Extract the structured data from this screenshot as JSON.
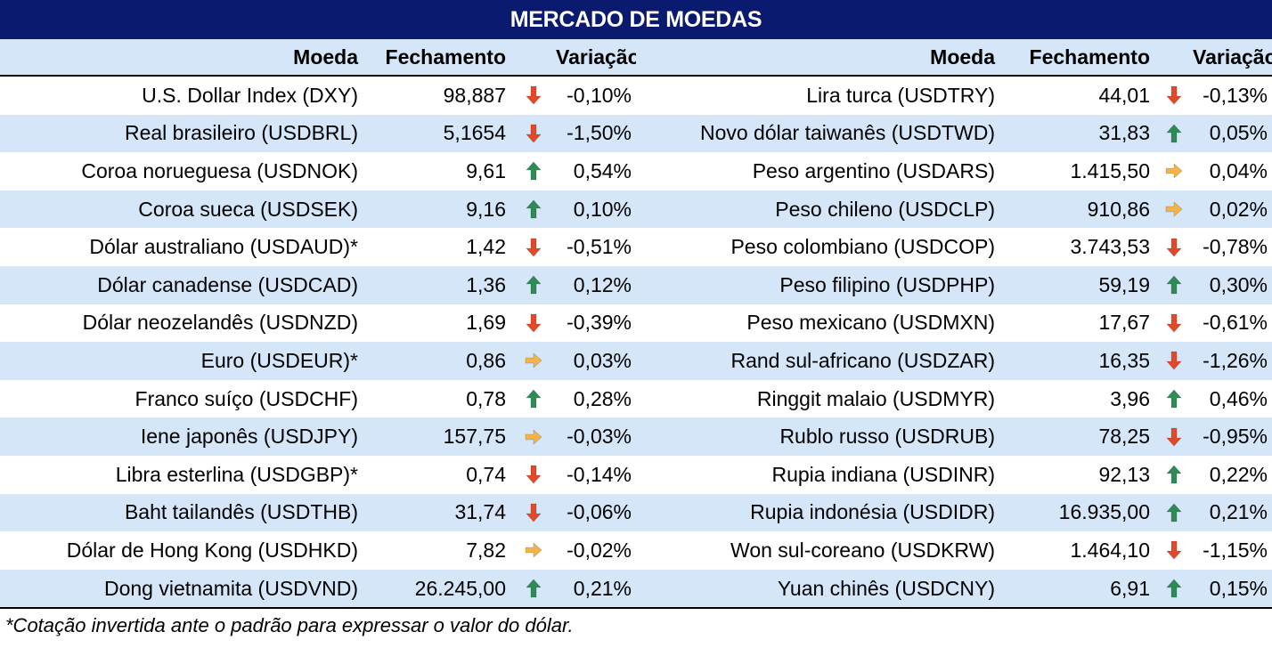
{
  "title": "MERCADO DE MOEDAS",
  "headers": {
    "currency": "Moeda",
    "close": "Fechamento",
    "change": "Variação"
  },
  "colors": {
    "header_bg": "#0a1a6e",
    "band": "#d4e6f8",
    "down": "#e2492a",
    "up": "#2e8b57",
    "flat": "#f2b44a"
  },
  "left_rows": [
    {
      "name": "U.S. Dollar Index (DXY)",
      "close": "98,887",
      "trend": "down",
      "change": "-0,10%"
    },
    {
      "name": "Real brasileiro (USDBRL)",
      "close": "5,1654",
      "trend": "down",
      "change": "-1,50%"
    },
    {
      "name": "Coroa norueguesa (USDNOK)",
      "close": "9,61",
      "trend": "up",
      "change": "0,54%"
    },
    {
      "name": "Coroa sueca (USDSEK)",
      "close": "9,16",
      "trend": "up",
      "change": "0,10%"
    },
    {
      "name": "Dólar australiano (USDAUD)*",
      "close": "1,42",
      "trend": "down",
      "change": "-0,51%"
    },
    {
      "name": "Dólar canadense (USDCAD)",
      "close": "1,36",
      "trend": "up",
      "change": "0,12%"
    },
    {
      "name": "Dólar neozelandês (USDNZD)",
      "close": "1,69",
      "trend": "down",
      "change": "-0,39%"
    },
    {
      "name": "Euro (USDEUR)*",
      "close": "0,86",
      "trend": "flat",
      "change": "0,03%"
    },
    {
      "name": "Franco suíço (USDCHF)",
      "close": "0,78",
      "trend": "up",
      "change": "0,28%"
    },
    {
      "name": "Iene japonês (USDJPY)",
      "close": "157,75",
      "trend": "flat",
      "change": "-0,03%"
    },
    {
      "name": "Libra esterlina (USDGBP)*",
      "close": "0,74",
      "trend": "down",
      "change": "-0,14%"
    },
    {
      "name": "Baht tailandês (USDTHB)",
      "close": "31,74",
      "trend": "down",
      "change": "-0,06%"
    },
    {
      "name": "Dólar de Hong Kong (USDHKD)",
      "close": "7,82",
      "trend": "flat",
      "change": "-0,02%"
    },
    {
      "name": "Dong vietnamita (USDVND)",
      "close": "26.245,00",
      "trend": "up",
      "change": "0,21%"
    }
  ],
  "right_rows": [
    {
      "name": "Lira turca (USDTRY)",
      "close": "44,01",
      "trend": "down",
      "change": "-0,13%"
    },
    {
      "name": "Novo dólar taiwanês (USDTWD)",
      "close": "31,83",
      "trend": "up",
      "change": "0,05%"
    },
    {
      "name": "Peso argentino (USDARS)",
      "close": "1.415,50",
      "trend": "flat",
      "change": "0,04%"
    },
    {
      "name": "Peso chileno (USDCLP)",
      "close": "910,86",
      "trend": "flat",
      "change": "0,02%"
    },
    {
      "name": "Peso colombiano (USDCOP)",
      "close": "3.743,53",
      "trend": "down",
      "change": "-0,78%"
    },
    {
      "name": "Peso filipino (USDPHP)",
      "close": "59,19",
      "trend": "up",
      "change": "0,30%"
    },
    {
      "name": "Peso mexicano (USDMXN)",
      "close": "17,67",
      "trend": "down",
      "change": "-0,61%"
    },
    {
      "name": "Rand sul-africano (USDZAR)",
      "close": "16,35",
      "trend": "down",
      "change": "-1,26%"
    },
    {
      "name": "Ringgit malaio (USDMYR)",
      "close": "3,96",
      "trend": "up",
      "change": "0,46%"
    },
    {
      "name": "Rublo russo (USDRUB)",
      "close": "78,25",
      "trend": "down",
      "change": "-0,95%"
    },
    {
      "name": "Rupia indiana (USDINR)",
      "close": "92,13",
      "trend": "up",
      "change": "0,22%"
    },
    {
      "name": "Rupia indonésia (USDIDR)",
      "close": "16.935,00",
      "trend": "up",
      "change": "0,21%"
    },
    {
      "name": "Won sul-coreano (USDKRW)",
      "close": "1.464,10",
      "trend": "down",
      "change": "-1,15%"
    },
    {
      "name": "Yuan chinês (USDCNY)",
      "close": "6,91",
      "trend": "up",
      "change": "0,15%"
    }
  ],
  "footnote": "*Cotação invertida ante o padrão para expressar o valor do dólar."
}
